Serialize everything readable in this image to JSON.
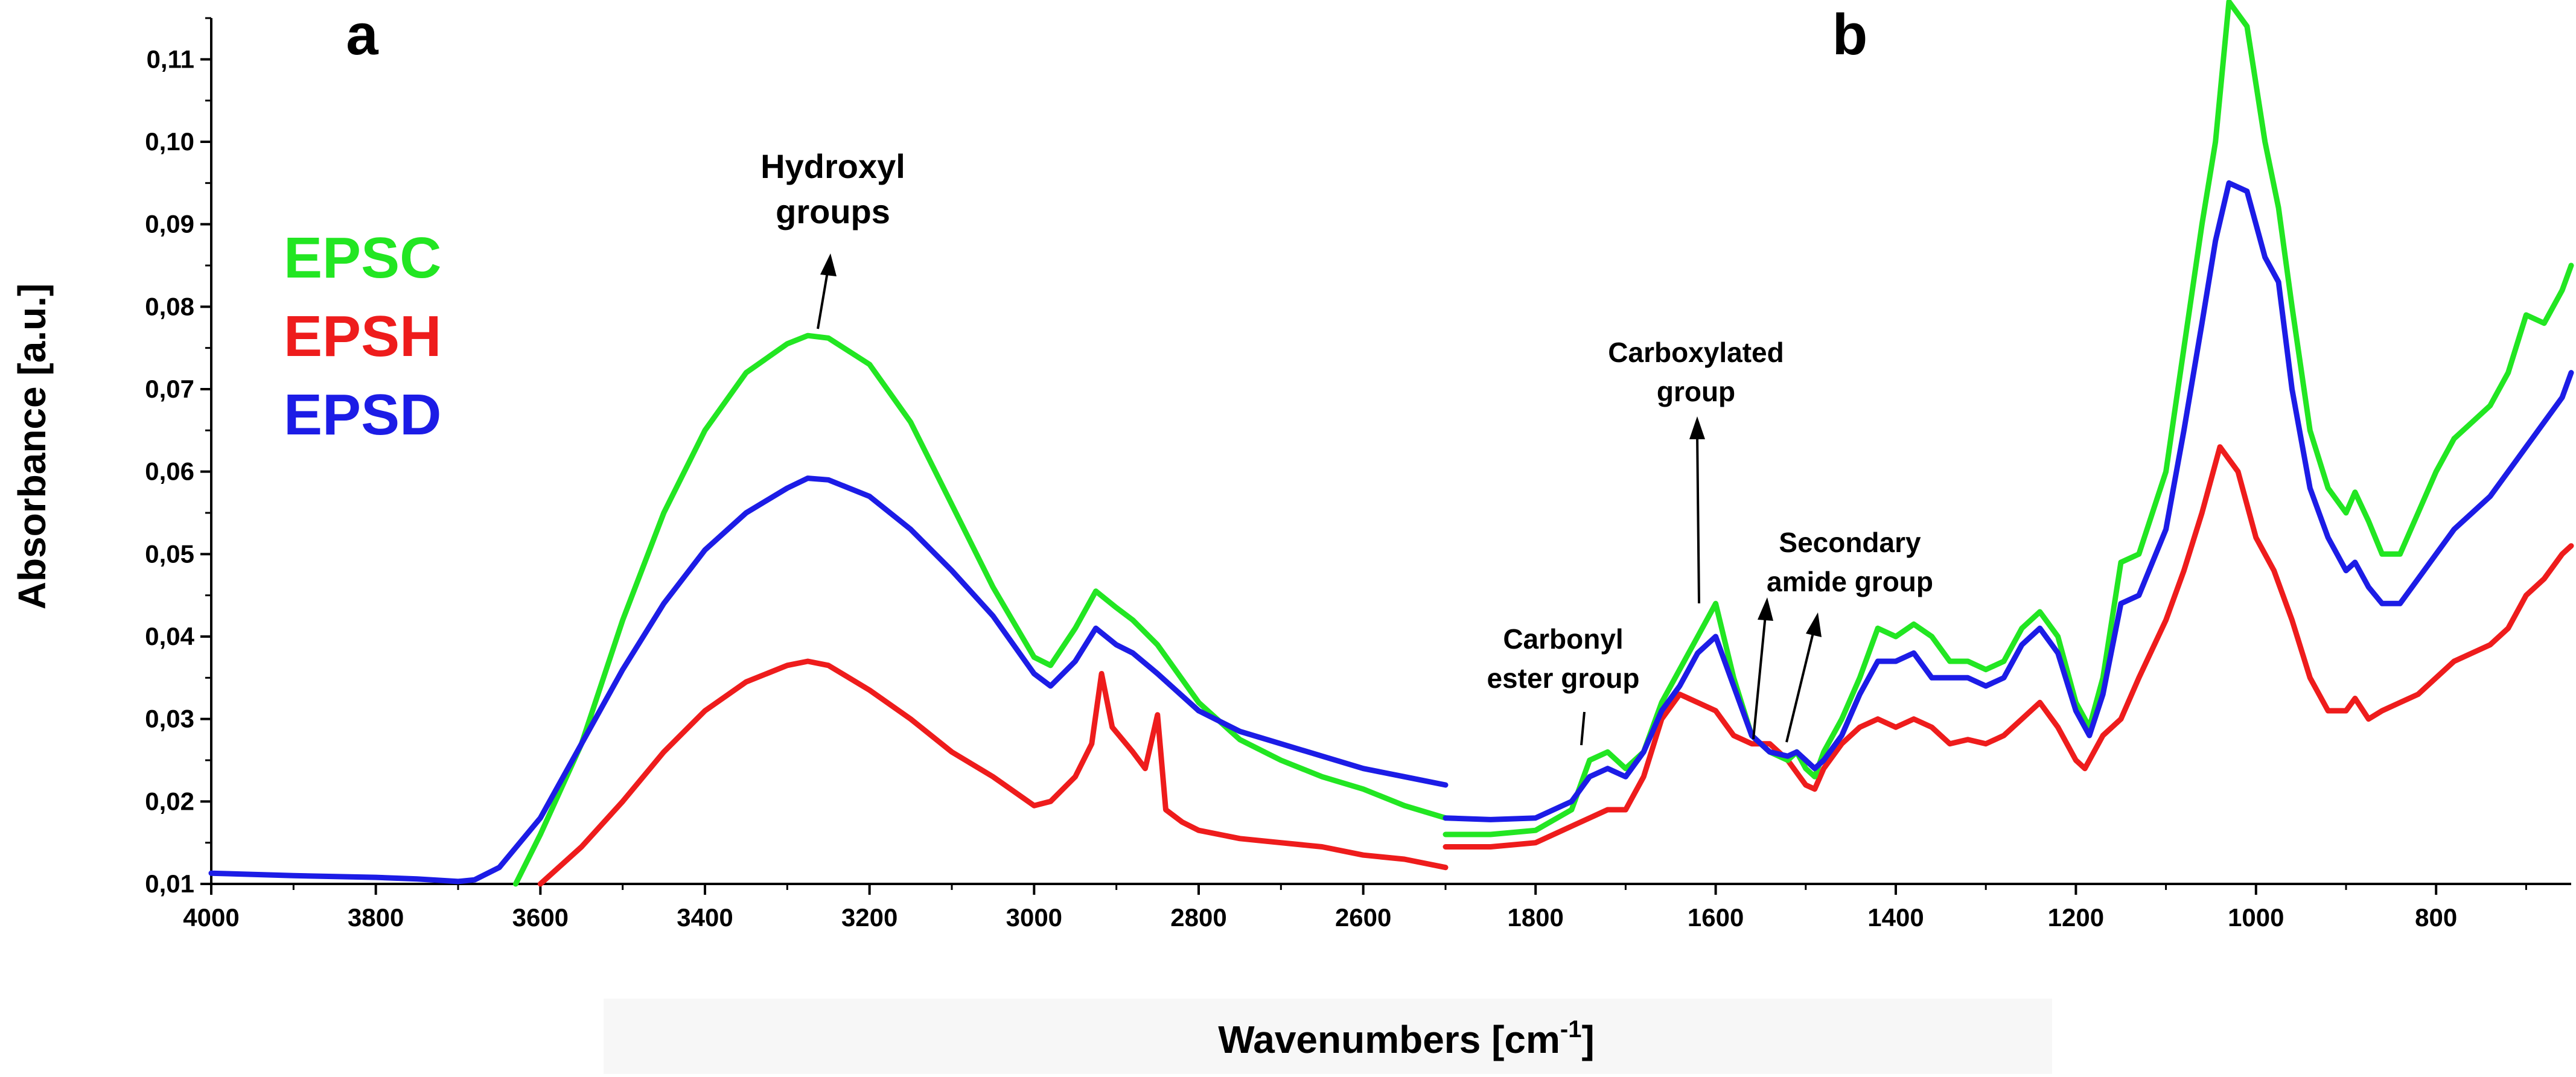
{
  "colors": {
    "EPSC": "#22e622",
    "EPSH": "#ee1c1c",
    "EPSD": "#1c1ce6"
  },
  "chart_data": [
    {
      "type": "line",
      "panel": "a",
      "xlabel": "Wavenumbers [cm-1]",
      "ylabel": "Absorbance [a.u.]",
      "xlim": [
        4000,
        2500
      ],
      "ylim": [
        0.01,
        0.115
      ],
      "x_ticks": [
        4000,
        3800,
        3600,
        3400,
        3200,
        3000,
        2800,
        2600
      ],
      "x_tick_labels": [
        "4000",
        "3800",
        "3600",
        "3400",
        "3200",
        "3000",
        "2800",
        "2600"
      ],
      "y_ticks": [
        0.01,
        0.02,
        0.03,
        0.04,
        0.05,
        0.06,
        0.07,
        0.08,
        0.09,
        0.1,
        0.11
      ],
      "y_tick_labels": [
        "0,01",
        "0,02",
        "0,03",
        "0,04",
        "0,05",
        "0,06",
        "0,07",
        "0,08",
        "0,09",
        "0,10",
        "0,11"
      ],
      "series": [
        {
          "name": "EPSC",
          "x": [
            3630,
            3600,
            3550,
            3500,
            3450,
            3400,
            3350,
            3300,
            3275,
            3250,
            3200,
            3150,
            3100,
            3050,
            3000,
            2980,
            2950,
            2925,
            2900,
            2880,
            2850,
            2800,
            2750,
            2700,
            2650,
            2600,
            2550,
            2500
          ],
          "y": [
            0.01,
            0.016,
            0.027,
            0.042,
            0.055,
            0.065,
            0.072,
            0.0755,
            0.0765,
            0.0762,
            0.073,
            0.066,
            0.056,
            0.046,
            0.0375,
            0.0365,
            0.041,
            0.0455,
            0.0435,
            0.042,
            0.039,
            0.032,
            0.0275,
            0.025,
            0.023,
            0.0215,
            0.0195,
            0.018
          ]
        },
        {
          "name": "EPSH",
          "x": [
            3600,
            3550,
            3500,
            3450,
            3400,
            3350,
            3300,
            3275,
            3250,
            3200,
            3150,
            3100,
            3050,
            3000,
            2980,
            2950,
            2930,
            2918,
            2905,
            2880,
            2865,
            2850,
            2840,
            2820,
            2800,
            2750,
            2700,
            2650,
            2600,
            2550,
            2500
          ],
          "y": [
            0.01,
            0.0145,
            0.02,
            0.026,
            0.031,
            0.0345,
            0.0365,
            0.037,
            0.0365,
            0.0335,
            0.03,
            0.026,
            0.023,
            0.0195,
            0.02,
            0.023,
            0.027,
            0.0355,
            0.029,
            0.026,
            0.024,
            0.0305,
            0.019,
            0.0175,
            0.0165,
            0.0155,
            0.015,
            0.0145,
            0.0135,
            0.013,
            0.012
          ]
        },
        {
          "name": "EPSD",
          "x": [
            4000,
            3900,
            3800,
            3750,
            3700,
            3680,
            3650,
            3600,
            3550,
            3500,
            3450,
            3400,
            3350,
            3300,
            3275,
            3250,
            3200,
            3150,
            3100,
            3050,
            3000,
            2980,
            2950,
            2925,
            2900,
            2880,
            2850,
            2800,
            2750,
            2700,
            2650,
            2600,
            2550,
            2500
          ],
          "y": [
            0.0113,
            0.011,
            0.0108,
            0.0106,
            0.0103,
            0.0105,
            0.012,
            0.018,
            0.027,
            0.036,
            0.044,
            0.0505,
            0.055,
            0.058,
            0.0592,
            0.059,
            0.057,
            0.053,
            0.048,
            0.0425,
            0.0355,
            0.034,
            0.037,
            0.041,
            0.039,
            0.038,
            0.0355,
            0.031,
            0.0285,
            0.027,
            0.0255,
            0.024,
            0.023,
            0.022
          ]
        }
      ],
      "legend": {
        "placement": "top-left",
        "entries": [
          "EPSC",
          "EPSH",
          "EPSD"
        ]
      },
      "annotations": [
        {
          "text_lines": [
            "Hydroxyl",
            "groups"
          ],
          "target_x": 3270
        }
      ]
    },
    {
      "type": "line",
      "panel": "b",
      "xlabel": "Wavenumbers [cm-1]",
      "ylabel": "",
      "xlim": [
        1900,
        650
      ],
      "ylim": [
        0.01,
        0.115
      ],
      "x_ticks": [
        1800,
        1600,
        1400,
        1200,
        1000,
        800
      ],
      "x_tick_labels": [
        "1800",
        "1600",
        "1400",
        "1200",
        "1000",
        "800"
      ],
      "series": [
        {
          "name": "EPSC",
          "x": [
            1900,
            1850,
            1800,
            1760,
            1740,
            1720,
            1700,
            1680,
            1660,
            1640,
            1620,
            1600,
            1580,
            1560,
            1540,
            1520,
            1510,
            1500,
            1490,
            1480,
            1460,
            1440,
            1420,
            1400,
            1380,
            1360,
            1340,
            1320,
            1300,
            1280,
            1260,
            1240,
            1220,
            1200,
            1185,
            1170,
            1150,
            1130,
            1100,
            1080,
            1060,
            1045,
            1030,
            1010,
            990,
            975,
            960,
            940,
            920,
            900,
            890,
            875,
            860,
            840,
            820,
            800,
            780,
            760,
            740,
            720,
            700,
            680,
            660,
            650
          ],
          "y": [
            0.016,
            0.016,
            0.0165,
            0.019,
            0.025,
            0.026,
            0.024,
            0.026,
            0.032,
            0.036,
            0.04,
            0.044,
            0.035,
            0.028,
            0.026,
            0.025,
            0.026,
            0.024,
            0.023,
            0.026,
            0.03,
            0.035,
            0.041,
            0.04,
            0.0415,
            0.04,
            0.037,
            0.037,
            0.036,
            0.037,
            0.041,
            0.043,
            0.04,
            0.032,
            0.029,
            0.035,
            0.049,
            0.05,
            0.06,
            0.075,
            0.09,
            0.1,
            0.117,
            0.114,
            0.1,
            0.092,
            0.08,
            0.065,
            0.058,
            0.055,
            0.0575,
            0.054,
            0.05,
            0.05,
            0.055,
            0.06,
            0.064,
            0.066,
            0.068,
            0.072,
            0.079,
            0.078,
            0.082,
            0.085
          ]
        },
        {
          "name": "EPSH",
          "x": [
            1900,
            1850,
            1800,
            1760,
            1740,
            1720,
            1700,
            1680,
            1660,
            1640,
            1620,
            1600,
            1580,
            1560,
            1540,
            1520,
            1500,
            1490,
            1480,
            1460,
            1440,
            1420,
            1400,
            1380,
            1360,
            1340,
            1320,
            1300,
            1280,
            1260,
            1240,
            1220,
            1200,
            1190,
            1170,
            1150,
            1130,
            1100,
            1080,
            1060,
            1040,
            1020,
            1000,
            980,
            960,
            940,
            920,
            900,
            890,
            875,
            860,
            840,
            820,
            800,
            780,
            760,
            740,
            720,
            700,
            680,
            660,
            650
          ],
          "y": [
            0.0145,
            0.0145,
            0.015,
            0.017,
            0.018,
            0.019,
            0.019,
            0.023,
            0.03,
            0.033,
            0.032,
            0.031,
            0.028,
            0.027,
            0.027,
            0.025,
            0.022,
            0.0215,
            0.024,
            0.027,
            0.029,
            0.03,
            0.029,
            0.03,
            0.029,
            0.027,
            0.0275,
            0.027,
            0.028,
            0.03,
            0.032,
            0.029,
            0.025,
            0.024,
            0.028,
            0.03,
            0.035,
            0.042,
            0.048,
            0.055,
            0.063,
            0.06,
            0.052,
            0.048,
            0.042,
            0.035,
            0.031,
            0.031,
            0.0325,
            0.03,
            0.031,
            0.032,
            0.033,
            0.035,
            0.037,
            0.038,
            0.039,
            0.041,
            0.045,
            0.047,
            0.05,
            0.051
          ]
        },
        {
          "name": "EPSD",
          "x": [
            1900,
            1850,
            1800,
            1760,
            1740,
            1720,
            1700,
            1680,
            1660,
            1640,
            1620,
            1600,
            1580,
            1560,
            1540,
            1520,
            1510,
            1500,
            1490,
            1480,
            1460,
            1440,
            1420,
            1400,
            1380,
            1360,
            1340,
            1320,
            1300,
            1280,
            1260,
            1240,
            1220,
            1200,
            1185,
            1170,
            1150,
            1130,
            1100,
            1080,
            1060,
            1045,
            1030,
            1010,
            990,
            975,
            960,
            940,
            920,
            900,
            890,
            875,
            860,
            840,
            820,
            800,
            780,
            760,
            740,
            720,
            700,
            680,
            660,
            650
          ],
          "y": [
            0.018,
            0.0178,
            0.018,
            0.02,
            0.023,
            0.024,
            0.023,
            0.026,
            0.031,
            0.034,
            0.038,
            0.04,
            0.034,
            0.028,
            0.026,
            0.0255,
            0.026,
            0.025,
            0.024,
            0.025,
            0.028,
            0.033,
            0.037,
            0.037,
            0.038,
            0.035,
            0.035,
            0.035,
            0.034,
            0.035,
            0.039,
            0.041,
            0.038,
            0.031,
            0.028,
            0.033,
            0.044,
            0.045,
            0.053,
            0.065,
            0.078,
            0.088,
            0.095,
            0.094,
            0.086,
            0.083,
            0.07,
            0.058,
            0.052,
            0.048,
            0.049,
            0.046,
            0.044,
            0.044,
            0.047,
            0.05,
            0.053,
            0.055,
            0.057,
            0.06,
            0.063,
            0.066,
            0.069,
            0.072
          ]
        }
      ],
      "annotations": [
        {
          "text_lines": [
            "Carboxylated",
            "group"
          ],
          "target_x": 1603
        },
        {
          "text_lines": [
            "Secondary",
            "amide group"
          ],
          "target_x": 1535
        },
        {
          "text_lines": [
            "Carbonyl",
            "ester group"
          ],
          "target_x": 1720
        }
      ]
    }
  ],
  "panel_labels": {
    "a": "a",
    "b": "b"
  },
  "legend_labels": {
    "epsc": "EPSC",
    "epsh": "EPSH",
    "epsd": "EPSD"
  },
  "annotation_text": {
    "hydroxyl_1": "Hydroxyl",
    "hydroxyl_2": "groups",
    "carboxylated_1": "Carboxylated",
    "carboxylated_2": "group",
    "secondary_1": "Secondary",
    "secondary_2": "amide group",
    "carbonyl_1": "Carbonyl",
    "carbonyl_2": "ester group"
  },
  "axis_titles": {
    "y": "Absorbance [a.u.]",
    "x": "Wavenumbers [cm",
    "x_sup": "-1",
    "x_end": "]"
  }
}
